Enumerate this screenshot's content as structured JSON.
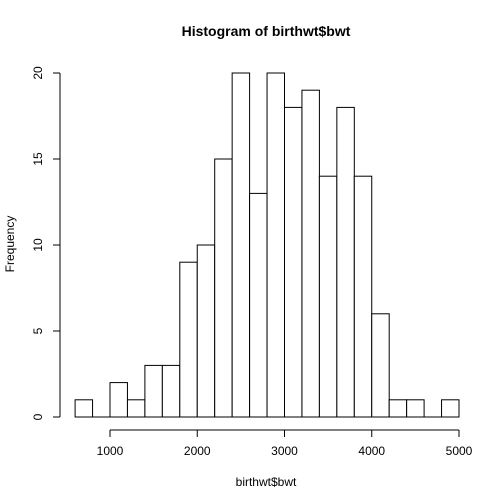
{
  "chart_data": {
    "type": "bar",
    "title": "Histogram of birthwt$bwt",
    "xlabel": "birthwt$bwt",
    "ylabel": "Frequency",
    "xlim": [
      500,
      5000
    ],
    "ylim": [
      0,
      20
    ],
    "x_ticks": [
      1000,
      2000,
      3000,
      4000,
      5000
    ],
    "y_ticks": [
      0,
      5,
      10,
      15,
      20
    ],
    "bin_width": 200,
    "bins": [
      {
        "start": 600,
        "end": 800,
        "count": 1
      },
      {
        "start": 800,
        "end": 1000,
        "count": 0
      },
      {
        "start": 1000,
        "end": 1200,
        "count": 2
      },
      {
        "start": 1200,
        "end": 1400,
        "count": 1
      },
      {
        "start": 1400,
        "end": 1600,
        "count": 3
      },
      {
        "start": 1600,
        "end": 1800,
        "count": 3
      },
      {
        "start": 1800,
        "end": 2000,
        "count": 9
      },
      {
        "start": 2000,
        "end": 2200,
        "count": 10
      },
      {
        "start": 2200,
        "end": 2400,
        "count": 15
      },
      {
        "start": 2400,
        "end": 2600,
        "count": 20
      },
      {
        "start": 2600,
        "end": 2800,
        "count": 13
      },
      {
        "start": 2800,
        "end": 3000,
        "count": 20
      },
      {
        "start": 3000,
        "end": 3200,
        "count": 18
      },
      {
        "start": 3200,
        "end": 3400,
        "count": 19
      },
      {
        "start": 3400,
        "end": 3600,
        "count": 14
      },
      {
        "start": 3600,
        "end": 3800,
        "count": 18
      },
      {
        "start": 3800,
        "end": 4000,
        "count": 14
      },
      {
        "start": 4000,
        "end": 4200,
        "count": 6
      },
      {
        "start": 4200,
        "end": 4400,
        "count": 1
      },
      {
        "start": 4400,
        "end": 4600,
        "count": 1
      },
      {
        "start": 4600,
        "end": 4800,
        "count": 0
      },
      {
        "start": 4800,
        "end": 5000,
        "count": 1
      }
    ],
    "grid": false,
    "legend": "none"
  }
}
